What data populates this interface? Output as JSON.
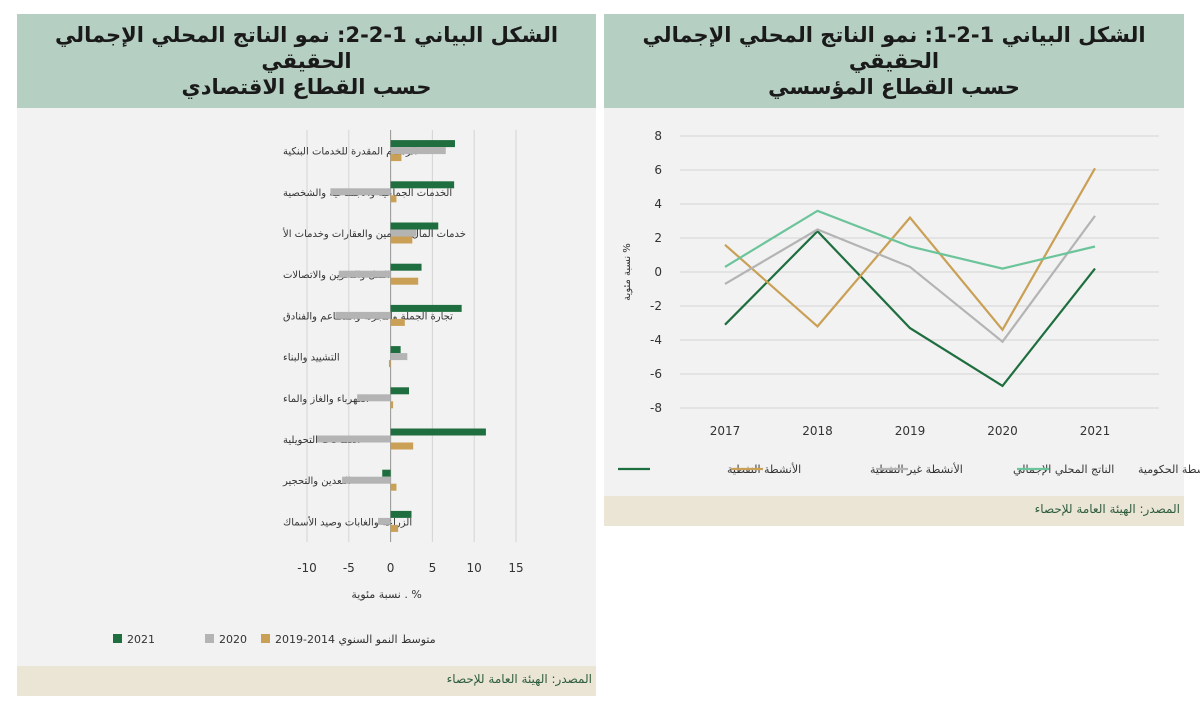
{
  "colors": {
    "green_dark": "#1f6e3f",
    "gray": "#b4b4b4",
    "gold": "#c9a055",
    "teal": "#6cc49a",
    "title_bg": "#b5cfc3",
    "source_bg": "#ebe5d6",
    "source_text": "#2f5d3e"
  },
  "left": {
    "title_line1": "الشكل البياني 1-2-2: نمو الناتج المحلي الإجمالي",
    "title_line2": "الحقيقي",
    "title_line3": "حسب القطاع الاقتصادي",
    "source": "المصدر: الهيئة العامة للإحصاء"
  },
  "right": {
    "title_line1": "الشكل البياني 1-2-1: نمو الناتج المحلي الإجمالي",
    "title_line2": "الحقيقي",
    "title_line3": "حسب القطاع المؤسسي",
    "source": "المصدر: الهيئة العامة للإحصاء"
  },
  "chart_data": [
    {
      "type": "bar",
      "orientation": "horizontal",
      "title": "الشكل البياني 1-2-2: نمو الناتج المحلي الإجمالي الحقيقي حسب القطاع الاقتصادي",
      "xlabel": "نسبة مئوية . %",
      "xlim": [
        -10,
        15
      ],
      "xticks": [
        -10,
        -5,
        0,
        5,
        10,
        15
      ],
      "grid": true,
      "legend_position": "bottom",
      "categories": [
        "الرسوم المقدرة للخدمات البنكية",
        "الخدمات الجماعية والاجتماعية والشخصية",
        "خدمات المال والتأمين والعقارات وخدمات الأ",
        "النقل والتخزين والاتصالات",
        "تجارة الجملة والتجزئة والمطاعم والفنادق",
        "التشييد والبناء",
        "الكهرباء والغاز والماء",
        "الصناعات التحويلية",
        "التعدين والتحجير",
        "الزراعة والغابات وصيد الأسماك"
      ],
      "series": [
        {
          "name": "2021",
          "color": "#1f6e3f",
          "values": [
            7.7,
            7.6,
            5.7,
            3.7,
            8.5,
            1.2,
            2.2,
            11.4,
            -1.0,
            2.5
          ]
        },
        {
          "name": "2020",
          "color": "#b4b4b4",
          "values": [
            6.6,
            -7.2,
            3.1,
            -6.2,
            -6.6,
            2.0,
            -4.0,
            -8.8,
            -5.8,
            -1.5
          ]
        },
        {
          "name": "متوسط النمو السنوي 2014-2019",
          "color": "#c9a055",
          "values": [
            1.3,
            0.7,
            2.6,
            3.3,
            1.7,
            -0.2,
            0.3,
            2.7,
            0.7,
            0.9
          ]
        }
      ]
    },
    {
      "type": "line",
      "title": "الشكل البياني 1-2-1: نمو الناتج المحلي الإجمالي الحقيقي حسب القطاع المؤسسي",
      "ylabel": "نسبة مئوية %",
      "ylim": [
        -8,
        8
      ],
      "yticks": [
        -8,
        -6,
        -4,
        -2,
        0,
        2,
        4,
        6,
        8
      ],
      "grid": true,
      "legend_position": "bottom",
      "x": [
        "2017",
        "2018",
        "2019",
        "2020",
        "2021"
      ],
      "series": [
        {
          "name": "الأنشطة النفطية",
          "color": "#1f6e3f",
          "values": [
            -3.1,
            2.4,
            -3.3,
            -6.7,
            0.2
          ]
        },
        {
          "name": "الأنشطة غير النفطية",
          "color": "#c9a055",
          "values": [
            1.6,
            -3.2,
            3.2,
            -3.4,
            6.1
          ]
        },
        {
          "name": "الناتج المحلي الإجمالي",
          "color": "#b4b4b4",
          "values": [
            -0.7,
            2.5,
            0.3,
            -4.1,
            3.3
          ]
        },
        {
          "name": "الأنشطة الحكومية",
          "color": "#6cc49a",
          "values": [
            0.3,
            3.6,
            1.5,
            0.2,
            1.5
          ]
        }
      ]
    }
  ]
}
